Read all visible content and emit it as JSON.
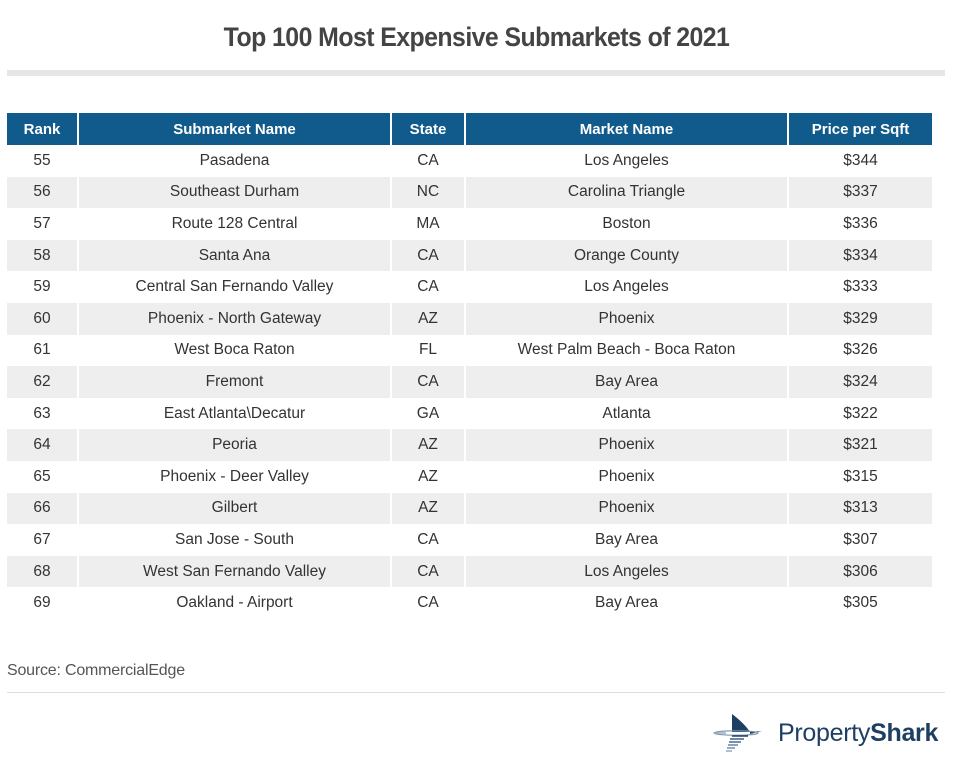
{
  "title": "Top 100 Most Expensive Submarkets of 2021",
  "table": {
    "headers": [
      "Rank",
      "Submarket Name",
      "State",
      "Market Name",
      "Price per Sqft"
    ],
    "rows": [
      [
        "55",
        "Pasadena",
        "CA",
        "Los Angeles",
        "$344"
      ],
      [
        "56",
        "Southeast Durham",
        "NC",
        "Carolina Triangle",
        "$337"
      ],
      [
        "57",
        "Route 128 Central",
        "MA",
        "Boston",
        "$336"
      ],
      [
        "58",
        "Santa Ana",
        "CA",
        "Orange County",
        "$334"
      ],
      [
        "59",
        "Central San Fernando Valley",
        "CA",
        "Los Angeles",
        "$333"
      ],
      [
        "60",
        "Phoenix - North Gateway",
        "AZ",
        "Phoenix",
        "$329"
      ],
      [
        "61",
        "West Boca Raton",
        "FL",
        "West Palm Beach - Boca Raton",
        "$326"
      ],
      [
        "62",
        "Fremont",
        "CA",
        "Bay Area",
        "$324"
      ],
      [
        "63",
        "East Atlanta\\Decatur",
        "GA",
        "Atlanta",
        "$322"
      ],
      [
        "64",
        "Peoria",
        "AZ",
        "Phoenix",
        "$321"
      ],
      [
        "65",
        "Phoenix - Deer Valley",
        "AZ",
        "Phoenix",
        "$315"
      ],
      [
        "66",
        "Gilbert",
        "AZ",
        "Phoenix",
        "$313"
      ],
      [
        "67",
        "San Jose - South",
        "CA",
        "Bay Area",
        "$307"
      ],
      [
        "68",
        "West San Fernando Valley",
        "CA",
        "Los Angeles",
        "$306"
      ],
      [
        "69",
        "Oakland - Airport",
        "CA",
        "Bay Area",
        "$305"
      ]
    ]
  },
  "source": "Source: CommercialEdge",
  "logo": {
    "icon": "shark-fin-icon",
    "text_light": "Property",
    "text_bold": "Shark"
  },
  "colors": {
    "header_bg": "#115a8c",
    "row_alt_bg": "#eeeeee",
    "brand": "#1e3f63"
  }
}
